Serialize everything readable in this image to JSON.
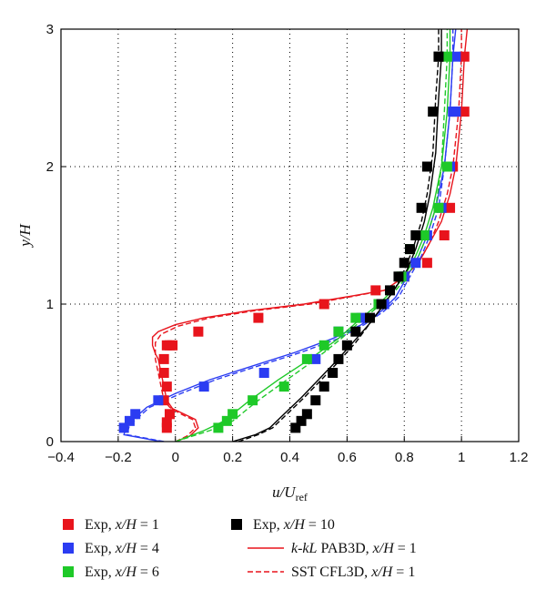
{
  "chart_data": {
    "type": "scatter",
    "xlabel": "u/U_ref",
    "xlabel_main": "u/U",
    "xlabel_sub": "ref",
    "ylabel": "y/H",
    "xlim": [
      -0.4,
      1.2
    ],
    "ylim": [
      0,
      3
    ],
    "xticks": [
      "-0.4",
      "-0.2",
      "0",
      "0.2",
      "0.4",
      "0.6",
      "0.8",
      "1",
      "1.2"
    ],
    "yticks": [
      "0",
      "1",
      "2",
      "3"
    ],
    "grid": true,
    "legend_position": "bottom",
    "series": [
      {
        "name": "Exp, x/H = 1",
        "kind": "markers",
        "color": "#e8141c",
        "x": [
          -0.03,
          -0.03,
          -0.02,
          -0.04,
          -0.03,
          -0.04,
          -0.04,
          -0.03,
          -0.02,
          -0.01,
          0.08,
          0.29,
          0.52,
          0.7,
          0.8,
          0.88,
          0.94,
          0.96,
          0.97,
          0.98,
          1.01,
          1.01
        ],
        "y": [
          0.1,
          0.14,
          0.2,
          0.3,
          0.4,
          0.5,
          0.6,
          0.7,
          0.7,
          0.7,
          0.8,
          0.9,
          1.0,
          1.1,
          1.2,
          1.3,
          1.5,
          1.7,
          2.0,
          2.4,
          2.4,
          2.8
        ]
      },
      {
        "name": "Exp, x/H = 4",
        "kind": "markers",
        "color": "#2b3cf2",
        "x": [
          -0.18,
          -0.16,
          -0.14,
          -0.06,
          0.1,
          0.31,
          0.49,
          0.57,
          0.65,
          0.73,
          0.8,
          0.84,
          0.88,
          0.93,
          0.96,
          0.97,
          0.98,
          0.98
        ],
        "y": [
          0.1,
          0.15,
          0.2,
          0.3,
          0.4,
          0.5,
          0.6,
          0.8,
          0.9,
          1.0,
          1.2,
          1.3,
          1.5,
          1.7,
          2.0,
          2.4,
          2.4,
          2.8
        ]
      },
      {
        "name": "Exp, x/H = 6",
        "kind": "markers",
        "color": "#1ec928",
        "x": [
          0.15,
          0.18,
          0.2,
          0.27,
          0.38,
          0.46,
          0.52,
          0.57,
          0.63,
          0.71,
          0.79,
          0.82,
          0.87,
          0.92,
          0.95,
          0.95
        ],
        "y": [
          0.1,
          0.15,
          0.2,
          0.3,
          0.4,
          0.6,
          0.7,
          0.8,
          0.9,
          1.0,
          1.2,
          1.4,
          1.5,
          1.7,
          2.0,
          2.8
        ]
      },
      {
        "name": "Exp, x/H = 10",
        "kind": "markers",
        "color": "#000000",
        "x": [
          0.42,
          0.44,
          0.46,
          0.49,
          0.52,
          0.55,
          0.57,
          0.6,
          0.63,
          0.68,
          0.72,
          0.75,
          0.78,
          0.8,
          0.82,
          0.84,
          0.86,
          0.88,
          0.9,
          0.92,
          0.92
        ],
        "y": [
          0.1,
          0.15,
          0.2,
          0.3,
          0.4,
          0.5,
          0.6,
          0.7,
          0.8,
          0.9,
          1.0,
          1.1,
          1.2,
          1.3,
          1.4,
          1.5,
          1.7,
          2.0,
          2.4,
          2.8,
          2.8
        ]
      },
      {
        "name": "k-kL PAB3D, x/H = 1",
        "kind": "solid",
        "color": "#e8141c",
        "x": [
          0.0,
          0.05,
          0.08,
          0.07,
          0.03,
          -0.01,
          -0.03,
          -0.04,
          -0.05,
          -0.06,
          -0.07,
          -0.08,
          -0.08,
          -0.06,
          0.0,
          0.1,
          0.25,
          0.45,
          0.62,
          0.73,
          0.8,
          0.85,
          0.89,
          0.93,
          0.96,
          0.98,
          1.0,
          1.01,
          1.02
        ],
        "y": [
          0.0,
          0.04,
          0.1,
          0.16,
          0.2,
          0.24,
          0.3,
          0.4,
          0.5,
          0.6,
          0.64,
          0.7,
          0.76,
          0.8,
          0.85,
          0.9,
          0.95,
          1.0,
          1.06,
          1.1,
          1.2,
          1.3,
          1.45,
          1.6,
          1.8,
          2.0,
          2.4,
          2.8,
          3.0
        ]
      },
      {
        "name": "SST CFL3D, x/H = 1",
        "kind": "dashed",
        "color": "#e8141c",
        "x": [
          0.0,
          0.04,
          0.07,
          0.06,
          0.02,
          -0.02,
          -0.04,
          -0.05,
          -0.06,
          -0.07,
          -0.07,
          -0.07,
          -0.05,
          0.01,
          0.12,
          0.27,
          0.47,
          0.63,
          0.73,
          0.8,
          0.85,
          0.89,
          0.92,
          0.95,
          0.97,
          0.99,
          1.0,
          1.0
        ],
        "y": [
          0.0,
          0.04,
          0.1,
          0.16,
          0.2,
          0.25,
          0.3,
          0.4,
          0.5,
          0.6,
          0.66,
          0.72,
          0.78,
          0.84,
          0.9,
          0.95,
          1.0,
          1.06,
          1.1,
          1.2,
          1.3,
          1.45,
          1.6,
          1.8,
          2.0,
          2.4,
          2.8,
          3.0
        ]
      },
      {
        "name": "solid, x/H = 4",
        "kind": "solid",
        "color": "#2b3cf2",
        "legend": false,
        "x": [
          -0.05,
          -0.18,
          -0.17,
          -0.1,
          0.0,
          0.12,
          0.27,
          0.42,
          0.55,
          0.65,
          0.72,
          0.77,
          0.81,
          0.85,
          0.88,
          0.91,
          0.94,
          0.96,
          0.97,
          0.98
        ],
        "y": [
          0.0,
          0.05,
          0.12,
          0.25,
          0.35,
          0.45,
          0.55,
          0.65,
          0.75,
          0.85,
          0.95,
          1.05,
          1.2,
          1.35,
          1.5,
          1.7,
          2.0,
          2.4,
          2.8,
          3.0
        ]
      },
      {
        "name": "dashed, x/H = 4",
        "kind": "dashed",
        "color": "#2b3cf2",
        "legend": false,
        "x": [
          -0.04,
          -0.17,
          -0.16,
          -0.09,
          0.02,
          0.14,
          0.29,
          0.44,
          0.57,
          0.66,
          0.73,
          0.78,
          0.82,
          0.86,
          0.89,
          0.92,
          0.94,
          0.96,
          0.97,
          0.97
        ],
        "y": [
          0.0,
          0.05,
          0.12,
          0.25,
          0.35,
          0.45,
          0.55,
          0.65,
          0.75,
          0.85,
          0.95,
          1.05,
          1.2,
          1.35,
          1.5,
          1.7,
          2.0,
          2.4,
          2.8,
          3.0
        ]
      },
      {
        "name": "solid, x/H = 6",
        "kind": "solid",
        "color": "#1ec928",
        "legend": false,
        "x": [
          0.0,
          0.1,
          0.17,
          0.26,
          0.36,
          0.47,
          0.57,
          0.65,
          0.71,
          0.76,
          0.8,
          0.84,
          0.87,
          0.9,
          0.93,
          0.95,
          0.96,
          0.96
        ],
        "y": [
          0.0,
          0.08,
          0.15,
          0.3,
          0.45,
          0.6,
          0.75,
          0.9,
          1.0,
          1.1,
          1.2,
          1.35,
          1.5,
          1.7,
          2.0,
          2.4,
          2.8,
          3.0
        ]
      },
      {
        "name": "dashed, x/H = 6",
        "kind": "dashed",
        "color": "#1ec928",
        "legend": false,
        "x": [
          0.0,
          0.12,
          0.2,
          0.29,
          0.39,
          0.49,
          0.58,
          0.66,
          0.72,
          0.77,
          0.81,
          0.85,
          0.88,
          0.91,
          0.93,
          0.94,
          0.95,
          0.95
        ],
        "y": [
          0.0,
          0.08,
          0.15,
          0.3,
          0.45,
          0.6,
          0.75,
          0.9,
          1.0,
          1.1,
          1.2,
          1.35,
          1.5,
          1.7,
          2.0,
          2.4,
          2.8,
          3.0
        ]
      },
      {
        "name": "solid, x/H = 10",
        "kind": "solid",
        "color": "#000000",
        "legend": false,
        "x": [
          0.2,
          0.28,
          0.33,
          0.38,
          0.44,
          0.5,
          0.56,
          0.62,
          0.68,
          0.73,
          0.77,
          0.81,
          0.84,
          0.87,
          0.89,
          0.91,
          0.92,
          0.93,
          0.93
        ],
        "y": [
          0.0,
          0.05,
          0.1,
          0.2,
          0.32,
          0.45,
          0.58,
          0.72,
          0.86,
          1.0,
          1.12,
          1.25,
          1.4,
          1.6,
          1.8,
          2.1,
          2.5,
          2.8,
          3.0
        ]
      },
      {
        "name": "dashed, x/H = 10",
        "kind": "dashed",
        "color": "#000000",
        "legend": false,
        "x": [
          0.22,
          0.29,
          0.34,
          0.39,
          0.45,
          0.51,
          0.57,
          0.63,
          0.68,
          0.73,
          0.77,
          0.8,
          0.83,
          0.86,
          0.88,
          0.9,
          0.91,
          0.92,
          0.92
        ],
        "y": [
          0.0,
          0.05,
          0.1,
          0.2,
          0.32,
          0.45,
          0.58,
          0.72,
          0.86,
          1.0,
          1.12,
          1.25,
          1.4,
          1.6,
          1.8,
          2.1,
          2.5,
          2.8,
          3.0
        ]
      }
    ],
    "legend": [
      {
        "series": 0,
        "prefix": "Exp, ",
        "ital": "x/H",
        "suffix": " = 1"
      },
      {
        "series": 1,
        "prefix": "Exp, ",
        "ital": "x/H",
        "suffix": " = 4"
      },
      {
        "series": 2,
        "prefix": "Exp, ",
        "ital": "x/H",
        "suffix": " = 6"
      },
      {
        "series": 3,
        "prefix": "Exp, ",
        "ital": "x/H",
        "suffix": " = 10"
      },
      {
        "series": 4,
        "prefix_ital": "k-kL",
        "prefix": " PAB3D, ",
        "ital": "x/H",
        "suffix": " = 1"
      },
      {
        "series": 5,
        "prefix": "SST CFL3D, ",
        "ital": "x/H",
        "suffix": " = 1"
      }
    ]
  }
}
